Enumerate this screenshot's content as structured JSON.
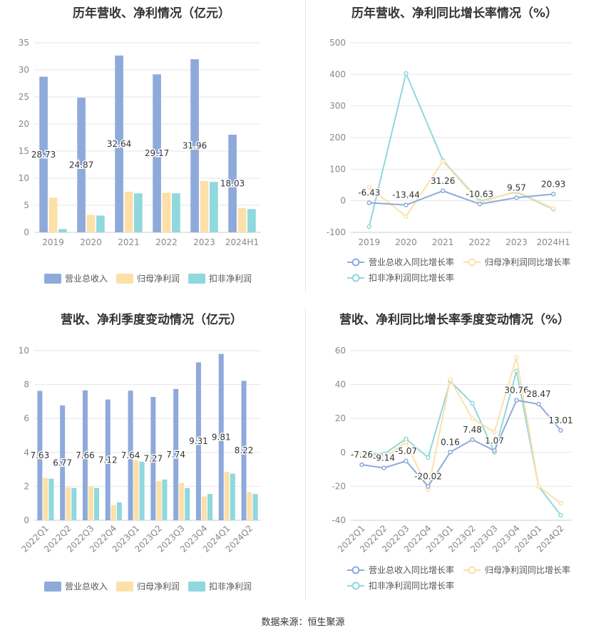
{
  "colors": {
    "revenue": "#8eaadb",
    "net_profit": "#fde0a8",
    "deducted_profit": "#8ed8de",
    "grid": "#e6e6e6",
    "axis_text": "#888888",
    "label_text": "#333333"
  },
  "footer": {
    "source": "数据来源：恒生聚源"
  },
  "chart_data": [
    {
      "type": "bar",
      "title": "历年营收、净利情况（亿元）",
      "categories": [
        "2019",
        "2020",
        "2021",
        "2022",
        "2023",
        "2024H1"
      ],
      "ylim": [
        0,
        35
      ],
      "yticks": [
        0,
        5,
        10,
        15,
        20,
        25,
        30,
        35
      ],
      "grid": true,
      "legend_position": "bottom",
      "series": [
        {
          "name": "营业总收入",
          "values": [
            28.73,
            24.87,
            32.64,
            29.17,
            31.96,
            18.03
          ],
          "labels": [
            "28.73",
            "24.87",
            "32.64",
            "29.17",
            "31.96",
            "18.03"
          ]
        },
        {
          "name": "归母净利润",
          "values": [
            6.4,
            3.2,
            7.5,
            7.3,
            9.5,
            4.5
          ]
        },
        {
          "name": "扣非净利润",
          "values": [
            0.6,
            3.1,
            7.2,
            7.2,
            9.3,
            4.3
          ]
        }
      ]
    },
    {
      "type": "line",
      "title": "历年营收、净利同比增长率情况（%）",
      "categories": [
        "2019",
        "2020",
        "2021",
        "2022",
        "2023",
        "2024H1"
      ],
      "ylim": [
        -100,
        500
      ],
      "yticks": [
        -100,
        0,
        100,
        200,
        300,
        400,
        500
      ],
      "grid": true,
      "legend_position": "bottom",
      "series": [
        {
          "name": "营业总收入同比增长率",
          "values": [
            -6.43,
            -13.44,
            31.26,
            -10.63,
            9.57,
            20.93
          ],
          "labels": [
            "-6.43",
            "-13.44",
            "31.26",
            "-10.63",
            "9.57",
            "20.93"
          ]
        },
        {
          "name": "归母净利润同比增长率",
          "values": [
            43,
            -50,
            125,
            -5,
            30,
            -25
          ]
        },
        {
          "name": "扣非净利润同比增长率",
          "values": [
            -82,
            403,
            128,
            -2,
            28,
            -27
          ]
        }
      ]
    },
    {
      "type": "bar",
      "title": "营收、净利季度变动情况（亿元）",
      "categories": [
        "2022Q1",
        "2022Q2",
        "2022Q3",
        "2022Q4",
        "2023Q1",
        "2023Q2",
        "2023Q3",
        "2023Q4",
        "2024Q1",
        "2024Q2"
      ],
      "ylim": [
        0,
        10
      ],
      "yticks": [
        0,
        2,
        4,
        6,
        8,
        10
      ],
      "grid": true,
      "legend_position": "bottom",
      "series": [
        {
          "name": "营业总收入",
          "values": [
            7.63,
            6.77,
            7.66,
            7.12,
            7.64,
            7.27,
            7.74,
            9.31,
            9.81,
            8.22
          ],
          "labels": [
            "7.63",
            "6.77",
            "7.66",
            "7.12",
            "7.64",
            "7.27",
            "7.74",
            "9.31",
            "9.81",
            "8.22"
          ]
        },
        {
          "name": "归母净利润",
          "values": [
            2.5,
            1.95,
            2.0,
            0.9,
            3.55,
            2.3,
            2.2,
            1.4,
            2.85,
            1.65
          ]
        },
        {
          "name": "扣非净利润",
          "values": [
            2.45,
            1.9,
            1.9,
            1.05,
            3.45,
            2.4,
            1.9,
            1.55,
            2.75,
            1.55
          ]
        }
      ]
    },
    {
      "type": "line",
      "title": "营收、净利同比增长率季度变动情况（%）",
      "categories": [
        "2022Q1",
        "2022Q2",
        "2022Q3",
        "2022Q4",
        "2023Q1",
        "2023Q2",
        "2023Q3",
        "2023Q4",
        "2024Q1",
        "2024Q2"
      ],
      "ylim": [
        -40,
        60
      ],
      "yticks": [
        -40,
        -20,
        0,
        20,
        40,
        60
      ],
      "grid": true,
      "legend_position": "bottom",
      "series": [
        {
          "name": "营业总收入同比增长率",
          "values": [
            -7.26,
            -9.14,
            -5.07,
            -20.02,
            0.16,
            7.48,
            1.07,
            30.76,
            28.47,
            13.01
          ],
          "labels": [
            "-7.26",
            "-9.14",
            "-5.07",
            "-20.02",
            "0.16",
            "7.48",
            "1.07",
            "30.76",
            "28.47",
            "13.01"
          ]
        },
        {
          "name": "归母净利润同比增长率",
          "values": [
            -1,
            -3,
            6,
            -22,
            43,
            20,
            12,
            56,
            -20,
            -30
          ]
        },
        {
          "name": "扣非净利润同比增长率",
          "values": [
            -1,
            -1,
            8,
            -3,
            42,
            29,
            0,
            48,
            -20,
            -37
          ]
        }
      ]
    }
  ]
}
